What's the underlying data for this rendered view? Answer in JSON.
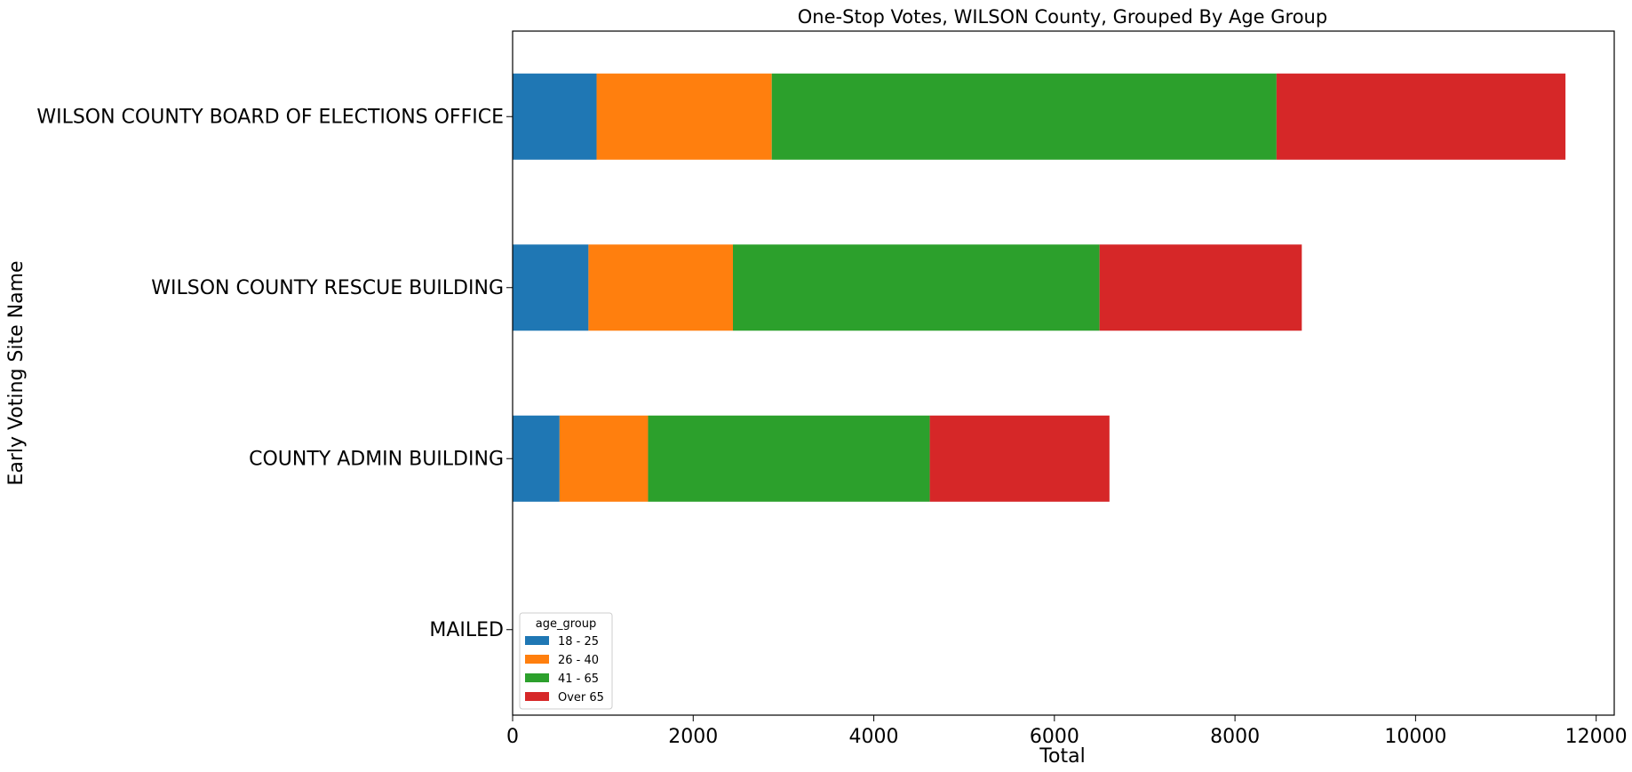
{
  "chart_data": {
    "type": "bar",
    "orientation": "horizontal",
    "stacked": true,
    "title": "One-Stop Votes, WILSON County, Grouped By Age Group",
    "xlabel": "Total",
    "ylabel": "Early Voting Site Name",
    "xlim": [
      0,
      12200
    ],
    "xticks": [
      0,
      2000,
      4000,
      6000,
      8000,
      10000,
      12000
    ],
    "xtick_labels": [
      "0",
      "2000",
      "4000",
      "6000",
      "8000",
      "10000",
      "12000"
    ],
    "grid": false,
    "categories": [
      "MAILED",
      "COUNTY ADMIN BUILDING",
      "WILSON COUNTY RESCUE BUILDING",
      "WILSON COUNTY BOARD OF ELECTIONS OFFICE"
    ],
    "series": [
      {
        "name": "18 - 25",
        "color": "#1f77b4",
        "values": [
          0,
          520,
          840,
          930
        ]
      },
      {
        "name": "26 - 40",
        "color": "#ff7f0e",
        "values": [
          0,
          980,
          1600,
          1940
        ]
      },
      {
        "name": "41 - 65",
        "color": "#2ca02c",
        "values": [
          0,
          3120,
          4060,
          5590
        ]
      },
      {
        "name": "Over 65",
        "color": "#d62728",
        "values": [
          0,
          1990,
          2240,
          3200
        ]
      }
    ],
    "legend": {
      "title": "age_group",
      "position": "lower-left"
    }
  }
}
